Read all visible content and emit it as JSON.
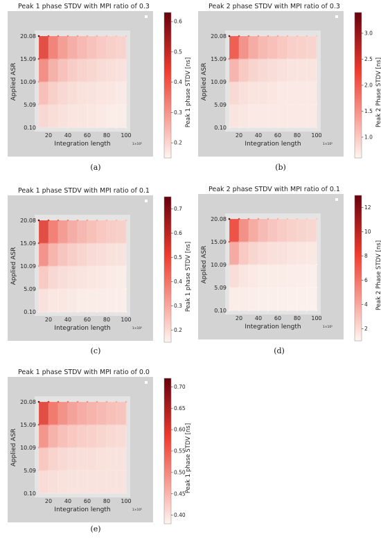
{
  "colormap": {
    "low": "#fff5f0",
    "mid": "#ef3b2c",
    "high": "#67000d"
  },
  "panel_background": "#d3d3d3",
  "x_axis_label": "Integration length",
  "y_axis_label": "Applied ASR",
  "x_multiplier_label": "1×10⁵",
  "x_tick_labels": [
    "20",
    "40",
    "60",
    "80",
    "100"
  ],
  "y_tick_labels": [
    "20.08",
    "15.09",
    "10.09",
    "5.09",
    "0.10"
  ],
  "chart_data": [
    {
      "type": "heatmap",
      "caption": "(a)",
      "title": "Peak 1 phase STDV with MPI ratio of 0.3",
      "xlabel": "Integration length",
      "ylabel": "Applied ASR",
      "colorbar_label": "Peak 1 phase STDV [ns]",
      "colorbar_ticks": [
        "0.2",
        "0.3",
        "0.4",
        "0.5",
        "0.6"
      ],
      "color_range": [
        0.15,
        0.63
      ],
      "x": [
        10,
        20,
        30,
        40,
        50,
        60,
        70,
        80,
        90,
        100
      ],
      "y": [
        0.1,
        5.09,
        10.09,
        15.09,
        20.08
      ],
      "values": [
        [
          0.19,
          0.18,
          0.18,
          0.17,
          0.17,
          0.17,
          0.17,
          0.16,
          0.16,
          0.16
        ],
        [
          0.22,
          0.2,
          0.19,
          0.18,
          0.18,
          0.17,
          0.17,
          0.17,
          0.16,
          0.16
        ],
        [
          0.3,
          0.24,
          0.22,
          0.2,
          0.19,
          0.19,
          0.18,
          0.18,
          0.17,
          0.17
        ],
        [
          0.45,
          0.33,
          0.28,
          0.25,
          0.23,
          0.22,
          0.21,
          0.2,
          0.19,
          0.19
        ],
        [
          0.62,
          0.43,
          0.36,
          0.32,
          0.29,
          0.27,
          0.25,
          0.24,
          0.23,
          0.22
        ]
      ]
    },
    {
      "type": "heatmap",
      "caption": "(b)",
      "title": "Peak 2 phase STDV with MPI ratio of 0.3",
      "xlabel": "Integration length",
      "ylabel": "Applied ASR",
      "colorbar_label": "Peak 2 Phase STDV [ns]",
      "colorbar_ticks": [
        "1.0",
        "1.5",
        "2.0",
        "2.5",
        "3.0"
      ],
      "color_range": [
        0.6,
        3.4
      ],
      "x": [
        10,
        20,
        30,
        40,
        50,
        60,
        70,
        80,
        90,
        100
      ],
      "y": [
        0.1,
        5.09,
        10.09,
        15.09,
        20.08
      ],
      "values": [
        [
          0.7,
          0.7,
          0.7,
          0.7,
          0.7,
          0.7,
          0.7,
          0.7,
          0.7,
          0.7
        ],
        [
          0.8,
          0.8,
          0.7,
          0.7,
          0.7,
          0.7,
          0.7,
          0.7,
          0.7,
          0.7
        ],
        [
          1.0,
          0.9,
          0.8,
          0.8,
          0.8,
          0.7,
          0.7,
          0.7,
          0.7,
          0.7
        ],
        [
          1.8,
          1.3,
          1.1,
          1.0,
          0.9,
          0.9,
          0.8,
          0.8,
          0.8,
          0.8
        ],
        [
          3.3,
          2.2,
          1.8,
          1.5,
          1.4,
          1.3,
          1.2,
          1.1,
          1.1,
          1.0
        ]
      ]
    },
    {
      "type": "heatmap",
      "caption": "(c)",
      "title": "Peak 1 phase STDV with MPI ratio of 0.1",
      "xlabel": "Integration length",
      "ylabel": "Applied ASR",
      "colorbar_label": "Peak 1 phase STDV [ns]",
      "colorbar_ticks": [
        "0.2",
        "0.3",
        "0.4",
        "0.5",
        "0.6",
        "0.7"
      ],
      "color_range": [
        0.15,
        0.75
      ],
      "x": [
        10,
        20,
        30,
        40,
        50,
        60,
        70,
        80,
        90,
        100
      ],
      "y": [
        0.1,
        5.09,
        10.09,
        15.09,
        20.08
      ],
      "values": [
        [
          0.18,
          0.17,
          0.17,
          0.17,
          0.16,
          0.16,
          0.16,
          0.16,
          0.16,
          0.16
        ],
        [
          0.21,
          0.19,
          0.18,
          0.18,
          0.17,
          0.17,
          0.17,
          0.16,
          0.16,
          0.16
        ],
        [
          0.32,
          0.25,
          0.22,
          0.21,
          0.2,
          0.19,
          0.18,
          0.18,
          0.17,
          0.17
        ],
        [
          0.52,
          0.37,
          0.31,
          0.27,
          0.25,
          0.23,
          0.22,
          0.21,
          0.2,
          0.2
        ],
        [
          0.74,
          0.52,
          0.43,
          0.37,
          0.33,
          0.31,
          0.29,
          0.27,
          0.26,
          0.25
        ]
      ]
    },
    {
      "type": "heatmap",
      "caption": "(d)",
      "title": "Peak 2 phase STDV with MPI ratio of 0.1",
      "xlabel": "Integration length",
      "ylabel": "Applied ASR",
      "colorbar_label": "Peak 2 Phase STDV [ns]",
      "colorbar_ticks": [
        "2",
        "4",
        "6",
        "8",
        "10",
        "12"
      ],
      "color_range": [
        1.0,
        13.0
      ],
      "x": [
        10,
        20,
        30,
        40,
        50,
        60,
        70,
        80,
        90,
        100
      ],
      "y": [
        0.1,
        5.09,
        10.09,
        15.09,
        20.08
      ],
      "values": [
        [
          1.2,
          1.2,
          1.2,
          1.1,
          1.1,
          1.1,
          1.1,
          1.1,
          1.1,
          1.1
        ],
        [
          1.5,
          1.3,
          1.3,
          1.2,
          1.2,
          1.2,
          1.2,
          1.1,
          1.1,
          1.1
        ],
        [
          3.0,
          2.0,
          1.7,
          1.5,
          1.4,
          1.4,
          1.3,
          1.3,
          1.2,
          1.2
        ],
        [
          7.5,
          4.5,
          3.3,
          2.8,
          2.4,
          2.2,
          2.0,
          1.9,
          1.8,
          1.7
        ],
        [
          12.8,
          8.0,
          6.0,
          4.8,
          4.1,
          3.6,
          3.2,
          3.0,
          2.8,
          2.6
        ]
      ]
    },
    {
      "type": "heatmap",
      "caption": "(e)",
      "title": "Peak 1 phase STDV with MPI ratio of 0.0",
      "xlabel": "Integration length",
      "ylabel": "Applied ASR",
      "colorbar_label": "Peak 1 phase STDV [ns]",
      "colorbar_ticks": [
        "0.40",
        "0.45",
        "0.50",
        "0.55",
        "0.60",
        "0.65",
        "0.70"
      ],
      "color_range": [
        0.38,
        0.72
      ],
      "x": [
        10,
        20,
        30,
        40,
        50,
        60,
        70,
        80,
        90,
        100
      ],
      "y": [
        0.1,
        5.09,
        10.09,
        15.09,
        20.08
      ],
      "values": [
        [
          0.41,
          0.4,
          0.4,
          0.4,
          0.4,
          0.4,
          0.4,
          0.4,
          0.4,
          0.4
        ],
        [
          0.42,
          0.41,
          0.41,
          0.4,
          0.4,
          0.4,
          0.4,
          0.4,
          0.4,
          0.4
        ],
        [
          0.47,
          0.44,
          0.42,
          0.42,
          0.41,
          0.41,
          0.41,
          0.4,
          0.4,
          0.4
        ],
        [
          0.58,
          0.51,
          0.48,
          0.46,
          0.45,
          0.44,
          0.43,
          0.43,
          0.42,
          0.42
        ],
        [
          0.71,
          0.6,
          0.55,
          0.52,
          0.5,
          0.49,
          0.48,
          0.47,
          0.46,
          0.46
        ]
      ]
    }
  ]
}
